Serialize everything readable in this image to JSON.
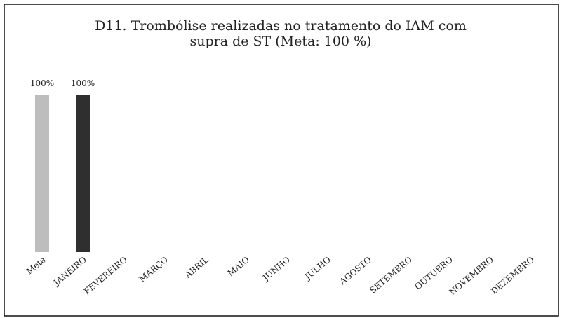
{
  "chart_data": {
    "type": "bar",
    "title": "D11. Trombólise realizadas no tratamento do IAM com supra de ST (Meta:  100 %)",
    "categories": [
      "Meta",
      "JANEIRO",
      "FEVEREIRO",
      "MARÇO",
      "ABRIL",
      "MAIO",
      "JUNHO",
      "JULHO",
      "AGOSTO",
      "SETEMBRO",
      "OUTUBRO",
      "NOVEMBRO",
      "DEZEMBRO"
    ],
    "values": [
      100,
      100,
      null,
      null,
      null,
      null,
      null,
      null,
      null,
      null,
      null,
      null,
      null
    ],
    "value_labels": [
      "100%",
      "100%",
      null,
      null,
      null,
      null,
      null,
      null,
      null,
      null,
      null,
      null,
      null
    ],
    "colors": [
      "#bdbdbd",
      "#2f2f2f",
      null,
      null,
      null,
      null,
      null,
      null,
      null,
      null,
      null,
      null,
      null
    ],
    "ylim": [
      0,
      100
    ]
  }
}
